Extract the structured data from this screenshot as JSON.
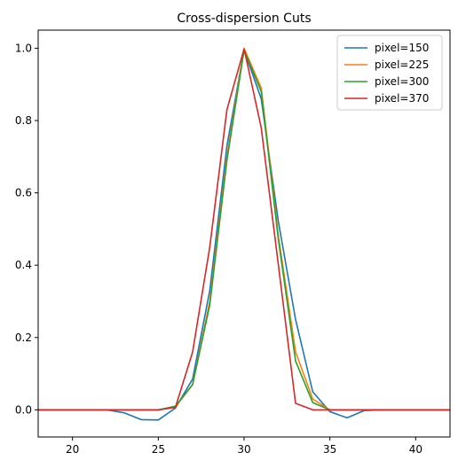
{
  "chart_data": {
    "type": "line",
    "title": "Cross-dispersion Cuts",
    "xlabel": "",
    "ylabel": "",
    "xlim": [
      18,
      42
    ],
    "ylim": [
      -0.075,
      1.05
    ],
    "xticks": [
      20,
      25,
      30,
      35,
      40
    ],
    "xtick_labels": [
      "20",
      "25",
      "30",
      "35",
      "40"
    ],
    "yticks": [
      0.0,
      0.2,
      0.4,
      0.6,
      0.8,
      1.0
    ],
    "ytick_labels": [
      "0.0",
      "0.2",
      "0.4",
      "0.6",
      "0.8",
      "1.0"
    ],
    "grid": false,
    "legend_position": "top-right",
    "x": [
      18,
      19,
      20,
      21,
      22,
      23,
      24,
      25,
      26,
      27,
      28,
      29,
      30,
      31,
      32,
      33,
      34,
      35,
      36,
      37,
      38,
      39,
      40,
      41,
      42
    ],
    "series": [
      {
        "name": "pixel=150",
        "color": "#1f77b4",
        "values": [
          0,
          0,
          0,
          0,
          0,
          -0.008,
          -0.027,
          -0.028,
          0.005,
          0.085,
          0.33,
          0.73,
          0.995,
          0.86,
          0.52,
          0.25,
          0.05,
          -0.005,
          -0.022,
          -0.002,
          0,
          0,
          0,
          0,
          0
        ]
      },
      {
        "name": "pixel=225",
        "color": "#ff7f0e",
        "values": [
          0,
          0,
          0,
          0,
          0,
          0,
          0,
          0,
          0.008,
          0.07,
          0.3,
          0.7,
          1.0,
          0.89,
          0.48,
          0.16,
          0.03,
          0.0,
          0,
          0,
          0,
          0,
          0,
          0,
          0
        ]
      },
      {
        "name": "pixel=300",
        "color": "#2ca02c",
        "values": [
          0,
          0,
          0,
          0,
          0,
          0,
          0,
          0,
          0.01,
          0.07,
          0.29,
          0.69,
          0.995,
          0.88,
          0.47,
          0.135,
          0.02,
          0.0,
          0,
          0,
          0,
          0,
          0,
          0,
          0
        ]
      },
      {
        "name": "pixel=370",
        "color": "#d62728",
        "values": [
          0,
          0,
          0,
          0,
          0,
          0,
          0,
          0,
          0.007,
          0.16,
          0.45,
          0.83,
          0.998,
          0.78,
          0.4,
          0.018,
          0.0,
          0.0,
          0,
          0,
          0,
          0,
          0,
          0,
          0
        ]
      }
    ]
  }
}
